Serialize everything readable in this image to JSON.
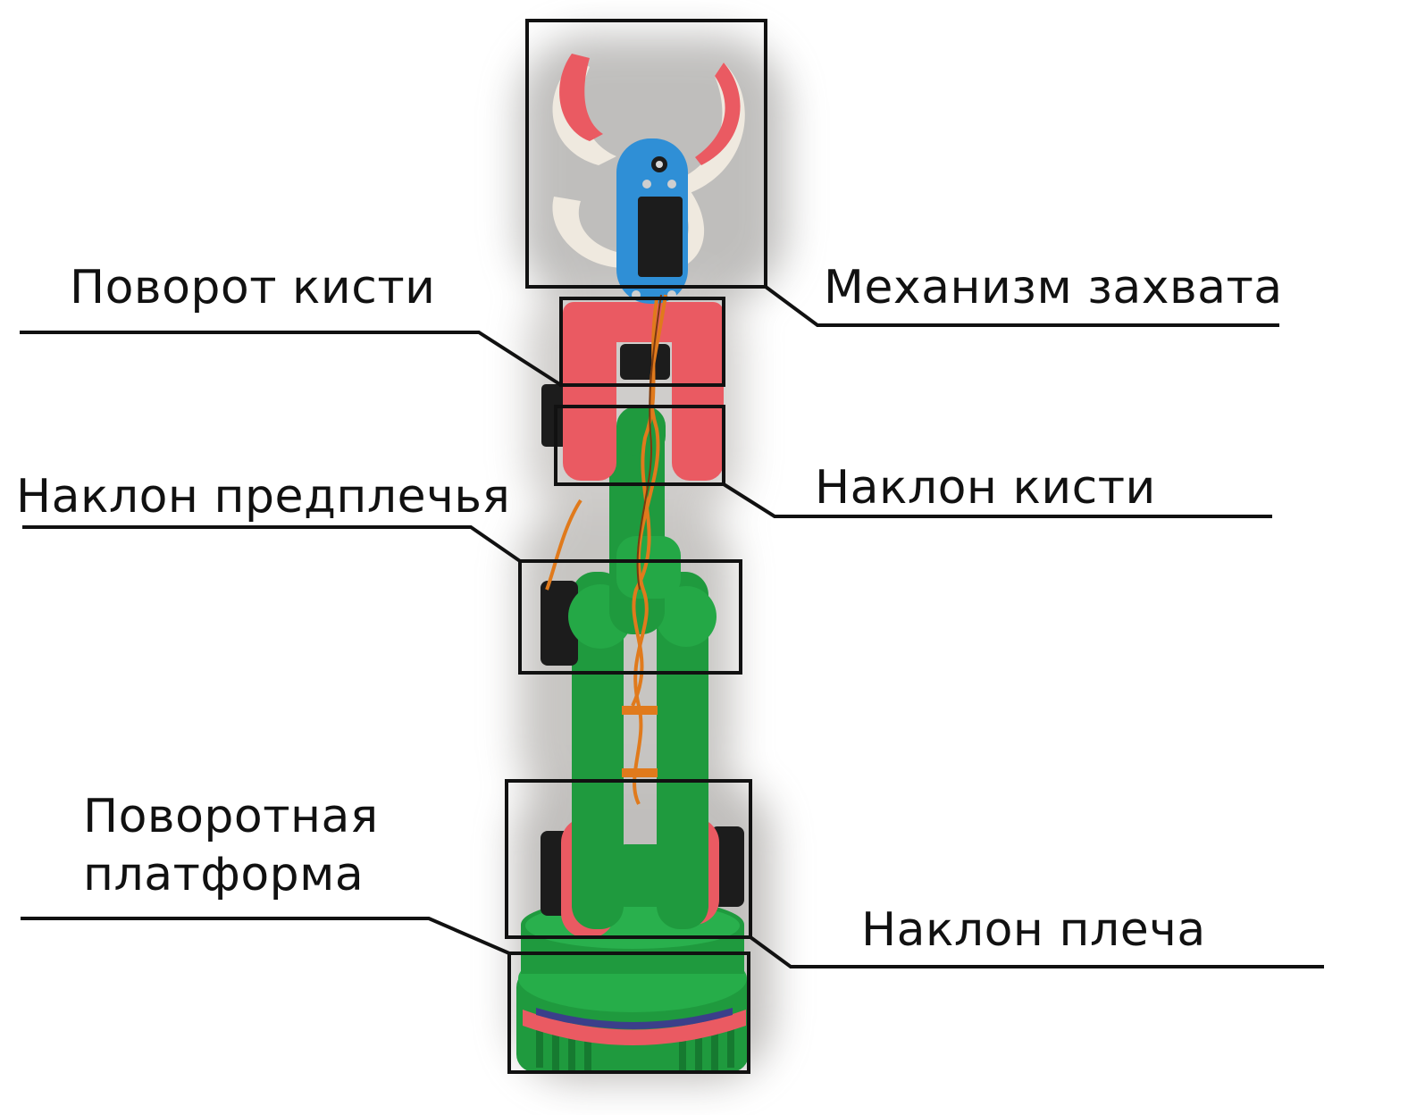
{
  "labels": {
    "wrist_rotation": "Поворот кисти",
    "gripper": "Механизм захвата",
    "forearm_tilt": "Наклон предплечья",
    "wrist_tilt": "Наклон кисти",
    "turntable_line1": "Поворотная",
    "turntable_line2": "платформа",
    "shoulder_tilt": "Наклон плеча"
  },
  "colors": {
    "robot_green": "#1f9a3e",
    "robot_red": "#ea5a62",
    "robot_blue": "#2f8fd6",
    "gripper_white": "#efe9df",
    "servo_black": "#1c1c1c",
    "wire_orange": "#e07a1c",
    "box_outline": "#111111"
  }
}
